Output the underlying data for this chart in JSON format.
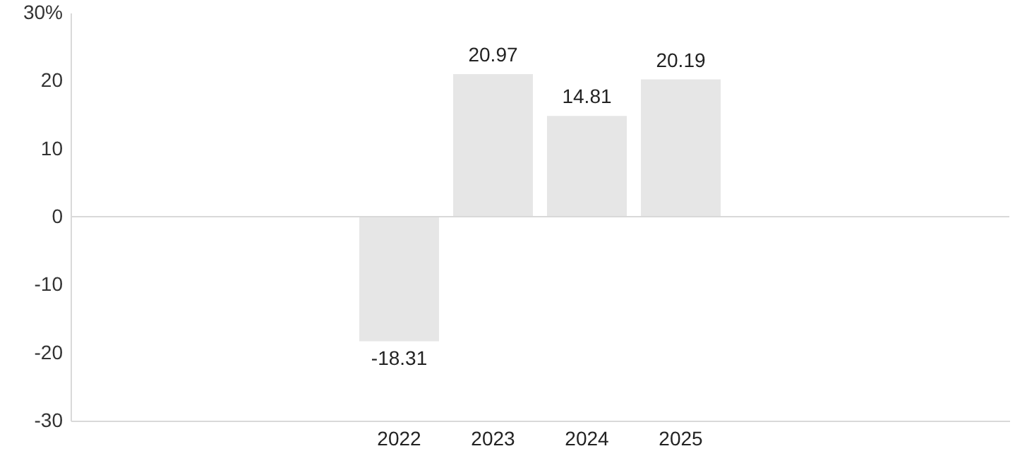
{
  "chart_data": {
    "type": "bar",
    "categories": [
      null,
      null,
      null,
      "2022",
      "2023",
      "2024",
      "2025",
      null,
      null,
      null
    ],
    "values": [
      null,
      null,
      null,
      -18.31,
      20.97,
      14.81,
      20.19,
      null,
      null,
      null
    ],
    "color": "#e6e6e6",
    "ylim": [
      -30,
      30
    ],
    "yticks": [
      -30,
      -20,
      -10,
      0,
      10,
      20,
      {
        "value": 30,
        "label": "30%"
      }
    ],
    "ref_lines": [
      {
        "axis": "y",
        "value": 0,
        "color": "#d9d9d9"
      }
    ],
    "data_labels": true,
    "grid": false
  }
}
